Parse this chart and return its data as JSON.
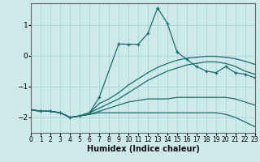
{
  "xlabel": "Humidex (Indice chaleur)",
  "background_color": "#cde9e9",
  "grid_color": "#b0d8d8",
  "line_color": "#1a6e6e",
  "xlim": [
    0,
    23
  ],
  "ylim": [
    -2.5,
    1.7
  ],
  "yticks": [
    -2,
    -1,
    0,
    1
  ],
  "xticks": [
    0,
    1,
    2,
    3,
    4,
    5,
    6,
    7,
    8,
    9,
    10,
    11,
    12,
    13,
    14,
    15,
    16,
    17,
    18,
    19,
    20,
    21,
    22,
    23
  ],
  "lines": [
    {
      "x": [
        0,
        1,
        2,
        3,
        4,
        5,
        6,
        7,
        8,
        9,
        10,
        11,
        12,
        13,
        14,
        15,
        16,
        17,
        18,
        19,
        20,
        21,
        22,
        23
      ],
      "y": [
        -1.75,
        -1.8,
        -1.8,
        -1.85,
        -2.0,
        -1.95,
        -1.9,
        -1.85,
        -1.85,
        -1.85,
        -1.85,
        -1.85,
        -1.85,
        -1.85,
        -1.85,
        -1.85,
        -1.85,
        -1.85,
        -1.85,
        -1.85,
        -1.9,
        -2.0,
        -2.15,
        -2.3
      ],
      "marker": false
    },
    {
      "x": [
        0,
        1,
        2,
        3,
        4,
        5,
        6,
        7,
        8,
        9,
        10,
        11,
        12,
        13,
        14,
        15,
        16,
        17,
        18,
        19,
        20,
        21,
        22,
        23
      ],
      "y": [
        -1.75,
        -1.8,
        -1.8,
        -1.85,
        -2.0,
        -1.95,
        -1.9,
        -1.8,
        -1.7,
        -1.6,
        -1.5,
        -1.45,
        -1.4,
        -1.4,
        -1.4,
        -1.35,
        -1.35,
        -1.35,
        -1.35,
        -1.35,
        -1.35,
        -1.4,
        -1.5,
        -1.6
      ],
      "marker": false
    },
    {
      "x": [
        0,
        1,
        2,
        3,
        4,
        5,
        6,
        7,
        8,
        9,
        10,
        11,
        12,
        13,
        14,
        15,
        16,
        17,
        18,
        19,
        20,
        21,
        22,
        23
      ],
      "y": [
        -1.75,
        -1.8,
        -1.8,
        -1.85,
        -2.0,
        -1.95,
        -1.85,
        -1.7,
        -1.55,
        -1.4,
        -1.2,
        -1.0,
        -0.8,
        -0.65,
        -0.5,
        -0.4,
        -0.3,
        -0.25,
        -0.2,
        -0.2,
        -0.25,
        -0.35,
        -0.5,
        -0.6
      ],
      "marker": false
    },
    {
      "x": [
        0,
        1,
        2,
        3,
        4,
        5,
        6,
        7,
        9,
        10,
        11,
        12,
        13,
        14,
        15,
        16,
        17,
        18,
        19,
        20,
        21,
        22,
        23
      ],
      "y": [
        -1.75,
        -1.8,
        -1.8,
        -1.85,
        -2.0,
        -1.95,
        -1.85,
        -1.35,
        0.38,
        0.37,
        0.37,
        0.72,
        1.55,
        1.05,
        0.12,
        -0.12,
        -0.35,
        -0.5,
        -0.55,
        -0.35,
        -0.55,
        -0.6,
        -0.72
      ],
      "marker": true
    },
    {
      "x": [
        0,
        1,
        2,
        3,
        4,
        5,
        6,
        7,
        8,
        9,
        10,
        11,
        12,
        13,
        14,
        15,
        16,
        17,
        18,
        19,
        20,
        21,
        22,
        23
      ],
      "y": [
        -1.75,
        -1.8,
        -1.8,
        -1.85,
        -2.0,
        -1.95,
        -1.85,
        -1.55,
        -1.4,
        -1.2,
        -0.95,
        -0.75,
        -0.55,
        -0.38,
        -0.25,
        -0.15,
        -0.08,
        -0.05,
        -0.02,
        -0.02,
        -0.05,
        -0.1,
        -0.18,
        -0.28
      ],
      "marker": false
    }
  ]
}
